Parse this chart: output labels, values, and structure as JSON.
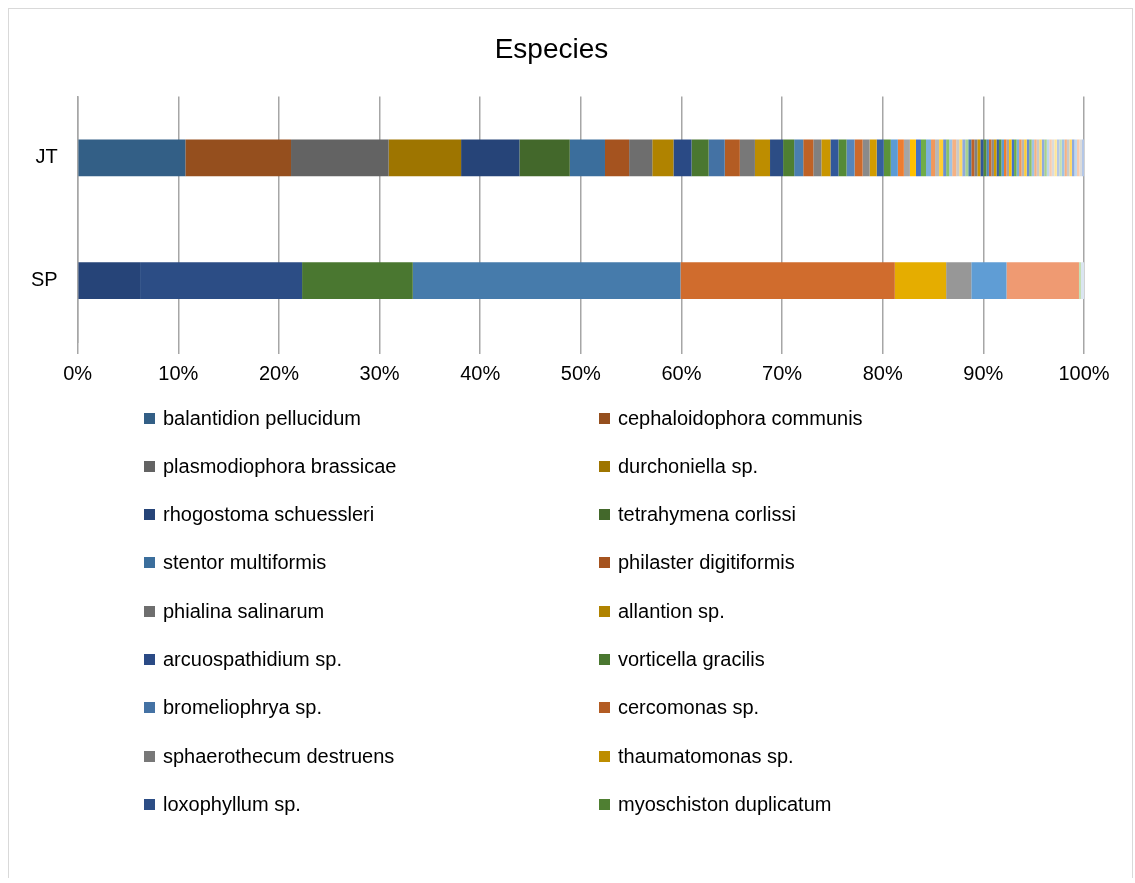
{
  "chart_data": {
    "type": "bar",
    "title": "Especies",
    "orientation": "horizontal",
    "stacked": true,
    "categories": [
      "JT",
      "SP"
    ],
    "xlim": [
      0,
      100
    ],
    "xticks": [
      {
        "value": 0,
        "label": "0%"
      },
      {
        "value": 10,
        "label": "10%"
      },
      {
        "value": 20,
        "label": "20%"
      },
      {
        "value": 30,
        "label": "30%"
      },
      {
        "value": 40,
        "label": "40%"
      },
      {
        "value": 50,
        "label": "50%"
      },
      {
        "value": 60,
        "label": "60%"
      },
      {
        "value": 70,
        "label": "70%"
      },
      {
        "value": 80,
        "label": "80%"
      },
      {
        "value": 90,
        "label": "90%"
      },
      {
        "value": 100,
        "label": "100%"
      }
    ],
    "grid": "x",
    "legend": "bottom",
    "series": [
      {
        "name": "balantidion pellucidum",
        "color": "#335f86",
        "values": [
          10.7,
          null
        ]
      },
      {
        "name": "cephaloidophora communis",
        "color": "#954f1e",
        "values": [
          10.5,
          null
        ]
      },
      {
        "name": "plasmodiophora brassicae",
        "color": "#636363",
        "values": [
          9.7,
          null
        ]
      },
      {
        "name": "durchoniella sp.",
        "color": "#9e7500",
        "values": [
          7.2,
          null
        ]
      },
      {
        "name": "rhogostoma schuessleri",
        "color": "#264478",
        "values": [
          5.8,
          null
        ]
      },
      {
        "name": "tetrahymena corlissi",
        "color": "#43682b",
        "values": [
          5.0,
          null
        ]
      },
      {
        "name": "stentor multiformis",
        "color": "#3b6e9c",
        "values": [
          3.5,
          null
        ]
      },
      {
        "name": "philaster digitiformis",
        "color": "#a5531f",
        "values": [
          2.4,
          null
        ]
      },
      {
        "name": "phialina salinarum",
        "color": "#6e6e6e",
        "values": [
          2.3,
          null
        ]
      },
      {
        "name": "allantion sp.",
        "color": "#b08300",
        "values": [
          2.1,
          null
        ]
      },
      {
        "name": "arcuospathidium sp.",
        "color": "#2a4a85",
        "values": [
          1.8,
          null
        ]
      },
      {
        "name": "vorticella gracilis",
        "color": "#4a7730",
        "values": [
          1.7,
          null
        ]
      },
      {
        "name": "bromeliophrya sp.",
        "color": "#4472a4",
        "values": [
          1.6,
          null
        ]
      },
      {
        "name": "cercomonas sp.",
        "color": "#b35c23",
        "values": [
          1.5,
          null
        ]
      },
      {
        "name": "sphaerothecum destruens",
        "color": "#787878",
        "values": [
          1.5,
          null
        ]
      },
      {
        "name": "thaumatomonas sp.",
        "color": "#bd8d00",
        "values": [
          1.5,
          null
        ]
      },
      {
        "name": "loxophyllum sp.",
        "color": "#2c4d85",
        "values": [
          1.3,
          null
        ]
      },
      {
        "name": "myoschiston duplicatum",
        "color": "#4f7f32",
        "values": [
          1.1,
          null
        ]
      },
      {
        "color": "#4a7eb0",
        "values": [
          0.9,
          null
        ]
      },
      {
        "color": "#bf6226",
        "values": [
          1.0,
          null
        ]
      },
      {
        "color": "#808080",
        "values": [
          0.8,
          null
        ]
      },
      {
        "color": "#c99600",
        "values": [
          0.9,
          null
        ]
      },
      {
        "color": "#31579a",
        "values": [
          0.8,
          null
        ]
      },
      {
        "color": "#558a36",
        "values": [
          0.8,
          null
        ]
      },
      {
        "color": "#5585bb",
        "values": [
          0.8,
          null
        ]
      },
      {
        "color": "#cc6a2b",
        "values": [
          0.8,
          null
        ]
      },
      {
        "color": "#8a8a8a",
        "values": [
          0.7,
          null
        ]
      },
      {
        "color": "#d19c00",
        "values": [
          0.7,
          null
        ]
      },
      {
        "color": "#35609f",
        "values": [
          0.7,
          null
        ]
      },
      {
        "color": "#5c943a",
        "values": [
          0.7,
          null
        ]
      },
      {
        "color": "#5b9bd5",
        "values": [
          0.7,
          null
        ]
      },
      {
        "color": "#ed7d31",
        "values": [
          0.6,
          null
        ]
      },
      {
        "color": "#a5a5a5",
        "values": [
          0.6,
          null
        ]
      },
      {
        "color": "#ffc000",
        "values": [
          0.6,
          null
        ]
      },
      {
        "color": "#4472c4",
        "values": [
          0.5,
          null
        ]
      },
      {
        "color": "#70ad47",
        "values": [
          0.5,
          null
        ]
      },
      {
        "color": "#7cafdd",
        "values": [
          0.5,
          null
        ]
      },
      {
        "color": "#f1975a",
        "values": [
          0.4,
          null
        ]
      },
      {
        "color": "#b7b7b7",
        "values": [
          0.4,
          null
        ]
      },
      {
        "color": "#ffcd33",
        "values": [
          0.4,
          null
        ]
      },
      {
        "color": "#698ed0",
        "values": [
          0.3,
          null
        ]
      },
      {
        "color": "#8cc168",
        "values": [
          0.3,
          null
        ]
      },
      {
        "color": "#9dc3e6",
        "values": [
          0.3,
          null
        ]
      },
      {
        "color": "#f4b183",
        "values": [
          0.4,
          null
        ]
      },
      {
        "color": "#c9c9c9",
        "values": [
          0.3,
          null
        ]
      },
      {
        "color": "#ffd966",
        "values": [
          0.3,
          null
        ]
      },
      {
        "color": "#8faadc",
        "values": [
          0.3,
          null
        ]
      },
      {
        "color": "#a9d18e",
        "values": [
          0.3,
          null
        ]
      },
      {
        "color": "#4a7eb0",
        "values": [
          0.3,
          null
        ]
      },
      {
        "color": "#bf6226",
        "values": [
          0.3,
          null
        ]
      },
      {
        "color": "#808080",
        "values": [
          0.3,
          null
        ]
      },
      {
        "color": "#c99600",
        "values": [
          0.3,
          null
        ]
      },
      {
        "color": "#31579a",
        "values": [
          0.3,
          null
        ]
      },
      {
        "color": "#558a36",
        "values": [
          0.3,
          null
        ]
      },
      {
        "color": "#5585bb",
        "values": [
          0.25,
          null
        ]
      },
      {
        "color": "#cc6a2b",
        "values": [
          0.25,
          null
        ]
      },
      {
        "color": "#8a8a8a",
        "values": [
          0.25,
          null
        ]
      },
      {
        "color": "#d19c00",
        "values": [
          0.25,
          null
        ]
      },
      {
        "color": "#35609f",
        "values": [
          0.25,
          null
        ]
      },
      {
        "color": "#5c943a",
        "values": [
          0.25,
          null
        ]
      },
      {
        "color": "#5b9bd5",
        "values": [
          0.25,
          null
        ]
      },
      {
        "color": "#ed7d31",
        "values": [
          0.25,
          null
        ]
      },
      {
        "color": "#a5a5a5",
        "values": [
          0.25,
          null
        ]
      },
      {
        "color": "#ffc000",
        "values": [
          0.25,
          null
        ]
      },
      {
        "color": "#4472c4",
        "values": [
          0.25,
          null
        ]
      },
      {
        "color": "#70ad47",
        "values": [
          0.25,
          null
        ]
      },
      {
        "color": "#7cafdd",
        "values": [
          0.25,
          null
        ]
      },
      {
        "color": "#f1975a",
        "values": [
          0.25,
          null
        ]
      },
      {
        "color": "#b7b7b7",
        "values": [
          0.25,
          null
        ]
      },
      {
        "color": "#ffcd33",
        "values": [
          0.25,
          null
        ]
      },
      {
        "color": "#698ed0",
        "values": [
          0.25,
          null
        ]
      },
      {
        "color": "#8cc168",
        "values": [
          0.25,
          null
        ]
      },
      {
        "color": "#9dc3e6",
        "values": [
          0.25,
          null
        ]
      },
      {
        "color": "#f4b183",
        "values": [
          0.25,
          null
        ]
      },
      {
        "color": "#c9c9c9",
        "values": [
          0.25,
          null
        ]
      },
      {
        "color": "#ffd966",
        "values": [
          0.25,
          null
        ]
      },
      {
        "color": "#8faadc",
        "values": [
          0.25,
          null
        ]
      },
      {
        "color": "#a9d18e",
        "values": [
          0.25,
          null
        ]
      },
      {
        "color": "#bdd7ee",
        "values": [
          0.25,
          null
        ]
      },
      {
        "color": "#f8cbad",
        "values": [
          0.25,
          null
        ]
      },
      {
        "color": "#dbdbdb",
        "values": [
          0.25,
          null
        ]
      },
      {
        "color": "#ffe699",
        "values": [
          0.25,
          null
        ]
      },
      {
        "color": "#b4c7e7",
        "values": [
          0.25,
          null
        ]
      },
      {
        "color": "#c5e0b4",
        "values": [
          0.25,
          null
        ]
      },
      {
        "color": "#9dc3e6",
        "values": [
          0.25,
          null
        ]
      },
      {
        "color": "#f4b183",
        "values": [
          0.25,
          null
        ]
      },
      {
        "color": "#c9c9c9",
        "values": [
          0.25,
          null
        ]
      },
      {
        "color": "#ffd966",
        "values": [
          0.25,
          null
        ]
      },
      {
        "color": "#8faadc",
        "values": [
          0.25,
          null
        ]
      },
      {
        "color": "#bdd7ee",
        "values": [
          0.25,
          null
        ]
      },
      {
        "color": "#f8cbad",
        "values": [
          0.25,
          null
        ]
      },
      {
        "color": "#dbdbdb",
        "values": [
          0.25,
          null
        ]
      },
      {
        "color": "#b4c7e7",
        "values": [
          0.25,
          null
        ]
      },
      {
        "color": "#264478",
        "values": [
          null,
          6.2
        ]
      },
      {
        "color": "#2c4d85",
        "values": [
          null,
          16.1
        ]
      },
      {
        "color": "#4a7730",
        "values": [
          null,
          11.0
        ]
      },
      {
        "color": "#467bab",
        "values": [
          null,
          26.6
        ]
      },
      {
        "color": "#d06c2d",
        "values": [
          null,
          21.3
        ]
      },
      {
        "color": "#e5ad00",
        "values": [
          null,
          5.1
        ]
      },
      {
        "color": "#979797",
        "values": [
          null,
          2.5
        ]
      },
      {
        "color": "#5f9dd5",
        "values": [
          null,
          3.5
        ]
      },
      {
        "color": "#ef9a72",
        "values": [
          null,
          7.2
        ]
      },
      {
        "color": "#c5e0b4",
        "values": [
          null,
          0.2
        ]
      },
      {
        "color": "#dbe5f1",
        "values": [
          null,
          0.3
        ]
      }
    ]
  }
}
